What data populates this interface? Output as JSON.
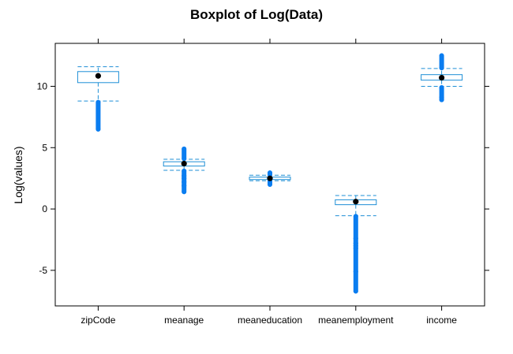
{
  "chart_data": {
    "type": "boxplot",
    "title": "Boxplot of Log(Data)",
    "xlabel": "",
    "ylabel": "Log(values)",
    "ylim": [
      -7.9,
      13.5
    ],
    "yticks": [
      10,
      5,
      0,
      -5
    ],
    "ytick_labels": [
      "10",
      "5",
      "0",
      "-5"
    ],
    "grid": false,
    "colors": {
      "box": "#1e8fd6",
      "outlier": "#0a7df0",
      "median": "#000000",
      "frame": "#000000"
    },
    "categories": [
      "zipCode",
      "meanage",
      "meaneducation",
      "meanemployment",
      "income"
    ],
    "boxes": [
      {
        "name": "zipCode",
        "whisker_low": 8.8,
        "q1": 10.3,
        "median": 10.85,
        "q3": 11.2,
        "whisker_high": 11.6,
        "outliers_low": [
          6.5,
          8.7
        ],
        "outliers_high": []
      },
      {
        "name": "meanage",
        "whisker_low": 3.15,
        "q1": 3.5,
        "median": 3.7,
        "q3": 3.85,
        "whisker_high": 4.05,
        "outliers_low": [
          1.4,
          1.9,
          2.2,
          2.5,
          2.7,
          3.1
        ],
        "outliers_high": [
          4.1,
          4.9
        ]
      },
      {
        "name": "meaneducation",
        "whisker_low": 2.3,
        "q1": 2.4,
        "median": 2.5,
        "q3": 2.6,
        "whisker_high": 2.75,
        "outliers_low": [
          2.0,
          2.25
        ],
        "outliers_high": [
          2.8,
          2.95
        ]
      },
      {
        "name": "meanemployment",
        "whisker_low": -0.55,
        "q1": 0.35,
        "median": 0.6,
        "q3": 0.75,
        "whisker_high": 1.1,
        "outliers_low": [
          -6.7,
          -5.1,
          -3.2,
          -3.0,
          -2.8,
          -2.4,
          -0.6
        ],
        "outliers_high": []
      },
      {
        "name": "income",
        "whisker_low": 10.0,
        "q1": 10.5,
        "median": 10.7,
        "q3": 10.95,
        "whisker_high": 11.45,
        "outliers_low": [
          8.9,
          9.1,
          9.9
        ],
        "outliers_high": [
          11.5,
          12.5
        ]
      }
    ]
  }
}
